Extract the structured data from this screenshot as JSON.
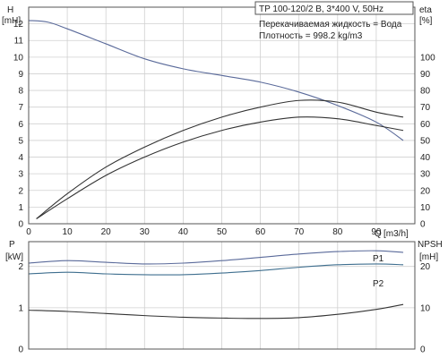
{
  "chart_data": [
    {
      "type": "line",
      "title": "TP 100-120/2 B, 3*400 V, 50Hz",
      "info_lines": [
        "Перекачиваемая жидкость = Вода",
        "Плотность = 998.2 kg/m3"
      ],
      "xlabel": "Q",
      "xunit": "[m3/h]",
      "xlim": [
        0,
        100
      ],
      "x_ticks": [
        0,
        10,
        20,
        30,
        40,
        50,
        60,
        70,
        80,
        90
      ],
      "left_axis": {
        "label": "H",
        "unit": "[mH]",
        "lim": [
          0,
          13
        ],
        "ticks": [
          0,
          1,
          2,
          3,
          4,
          5,
          6,
          7,
          8,
          9,
          10,
          11,
          12
        ]
      },
      "right_axis": {
        "label": "eta",
        "unit": "[%]",
        "lim": [
          0,
          130
        ],
        "ticks": [
          0,
          10,
          20,
          30,
          40,
          50,
          60,
          70,
          80,
          90,
          100
        ]
      },
      "grid": true,
      "series": [
        {
          "axis": "left",
          "color": "#5a6a9a",
          "x": [
            0,
            5,
            10,
            20,
            30,
            40,
            50,
            60,
            70,
            80,
            90,
            97
          ],
          "y": [
            12.2,
            12.1,
            11.7,
            10.8,
            9.9,
            9.3,
            8.9,
            8.5,
            7.9,
            7.1,
            6.1,
            5.0
          ]
        },
        {
          "axis": "right",
          "color": "#333333",
          "x": [
            2,
            10,
            20,
            30,
            40,
            50,
            60,
            70,
            80,
            90,
            97
          ],
          "y": [
            3,
            18,
            34,
            46,
            56,
            64,
            70,
            74,
            73,
            67,
            64
          ]
        },
        {
          "axis": "right",
          "color": "#333333",
          "x": [
            2,
            10,
            20,
            30,
            40,
            50,
            60,
            70,
            80,
            90,
            97
          ],
          "y": [
            3,
            15,
            29,
            40,
            49,
            56,
            61,
            64,
            63,
            59,
            56
          ]
        }
      ]
    },
    {
      "type": "line",
      "xlim": [
        0,
        100
      ],
      "x_ticks": [
        0,
        10,
        20,
        30,
        40,
        50,
        60,
        70,
        80,
        90
      ],
      "left_axis": {
        "label": "P",
        "unit": "[kW]",
        "lim": [
          0,
          2.6
        ],
        "ticks": [
          0,
          1,
          2
        ]
      },
      "right_axis": {
        "label": "NPSH",
        "unit": "[mH]",
        "lim": [
          0,
          26
        ],
        "ticks": [
          0,
          10,
          20
        ]
      },
      "grid": true,
      "series": [
        {
          "name": "P1",
          "axis": "left",
          "color": "#5a6a9a",
          "x": [
            0,
            10,
            20,
            30,
            40,
            50,
            60,
            70,
            80,
            90,
            97
          ],
          "y": [
            2.08,
            2.14,
            2.1,
            2.06,
            2.08,
            2.14,
            2.22,
            2.3,
            2.36,
            2.38,
            2.34
          ]
        },
        {
          "name": "P2",
          "axis": "left",
          "color": "#3f6f8f",
          "x": [
            0,
            10,
            20,
            30,
            40,
            50,
            60,
            70,
            80,
            90,
            97
          ],
          "y": [
            1.82,
            1.86,
            1.82,
            1.8,
            1.8,
            1.84,
            1.9,
            1.98,
            2.04,
            2.06,
            2.04
          ]
        },
        {
          "axis": "right",
          "color": "#333333",
          "x": [
            0,
            10,
            20,
            30,
            40,
            50,
            60,
            70,
            80,
            90,
            97
          ],
          "y": [
            9.4,
            9.1,
            8.6,
            8.1,
            7.7,
            7.5,
            7.4,
            7.6,
            8.4,
            9.6,
            10.8
          ]
        }
      ]
    }
  ]
}
